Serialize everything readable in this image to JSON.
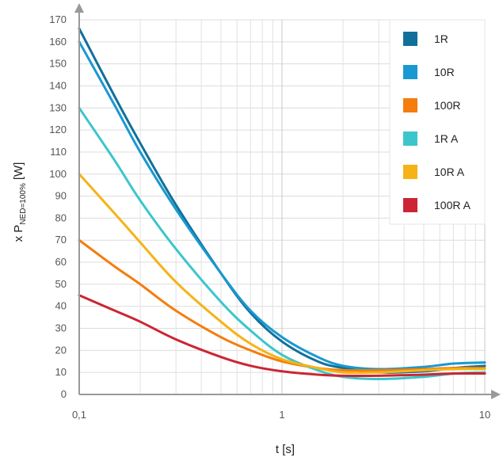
{
  "chart_data": {
    "type": "line",
    "title": "",
    "xlabel": "t [s]",
    "ylabel": {
      "prefix": "x P",
      "subscript": "NED=100%",
      "suffix": "[W]"
    },
    "x_scale": "log",
    "xlim": [
      0.1,
      10
    ],
    "ylim": [
      0,
      170
    ],
    "grid": true,
    "legend_position": "top-right",
    "x_ticks": [
      {
        "value": 0.1,
        "label": "0,1"
      },
      {
        "value": 1,
        "label": "1"
      },
      {
        "value": 10,
        "label": "10"
      }
    ],
    "y_ticks": [
      0,
      10,
      20,
      30,
      40,
      50,
      60,
      70,
      80,
      90,
      100,
      110,
      120,
      130,
      140,
      150,
      160,
      170
    ],
    "series": [
      {
        "name": "1R",
        "color": "#11709a",
        "points": [
          [
            0.1,
            166
          ],
          [
            0.15,
            135
          ],
          [
            0.2,
            114
          ],
          [
            0.3,
            86
          ],
          [
            0.5,
            55
          ],
          [
            0.7,
            37
          ],
          [
            1.0,
            24
          ],
          [
            1.5,
            15
          ],
          [
            2.0,
            12
          ],
          [
            3.0,
            10
          ],
          [
            5.0,
            10.5
          ],
          [
            7.0,
            12
          ],
          [
            10.0,
            13
          ]
        ]
      },
      {
        "name": "10R",
        "color": "#1998d1",
        "points": [
          [
            0.1,
            160
          ],
          [
            0.15,
            131
          ],
          [
            0.2,
            110
          ],
          [
            0.3,
            84
          ],
          [
            0.5,
            55
          ],
          [
            0.7,
            38
          ],
          [
            1.0,
            26
          ],
          [
            1.5,
            17
          ],
          [
            2.0,
            13
          ],
          [
            3.0,
            11.5
          ],
          [
            5.0,
            12.5
          ],
          [
            7.0,
            14
          ],
          [
            10.0,
            14.5
          ]
        ]
      },
      {
        "name": "100R",
        "color": "#f47d0e",
        "points": [
          [
            0.1,
            70
          ],
          [
            0.15,
            58
          ],
          [
            0.2,
            50
          ],
          [
            0.3,
            38
          ],
          [
            0.5,
            26
          ],
          [
            0.7,
            20
          ],
          [
            1.0,
            15
          ],
          [
            1.5,
            12
          ],
          [
            2.0,
            11
          ],
          [
            3.0,
            11
          ],
          [
            5.0,
            11.5
          ],
          [
            7.0,
            12
          ],
          [
            10.0,
            12
          ]
        ]
      },
      {
        "name": "1R A",
        "color": "#3bc6cc",
        "points": [
          [
            0.1,
            130
          ],
          [
            0.15,
            106
          ],
          [
            0.2,
            88
          ],
          [
            0.3,
            66
          ],
          [
            0.5,
            42
          ],
          [
            0.7,
            29
          ],
          [
            1.0,
            18
          ],
          [
            1.5,
            11
          ],
          [
            2.0,
            8
          ],
          [
            3.0,
            7
          ],
          [
            5.0,
            8
          ],
          [
            7.0,
            9.5
          ],
          [
            10.0,
            10
          ]
        ]
      },
      {
        "name": "10R A",
        "color": "#f5b316",
        "points": [
          [
            0.1,
            100
          ],
          [
            0.15,
            82
          ],
          [
            0.2,
            69
          ],
          [
            0.3,
            51
          ],
          [
            0.5,
            33
          ],
          [
            0.7,
            23
          ],
          [
            1.0,
            16
          ],
          [
            1.5,
            12
          ],
          [
            2.0,
            10
          ],
          [
            3.0,
            10
          ],
          [
            5.0,
            11
          ],
          [
            7.0,
            11.5
          ],
          [
            10.0,
            11.5
          ]
        ]
      },
      {
        "name": "100R A",
        "color": "#cc2534",
        "points": [
          [
            0.1,
            45
          ],
          [
            0.15,
            38
          ],
          [
            0.2,
            33
          ],
          [
            0.3,
            25
          ],
          [
            0.5,
            17
          ],
          [
            0.7,
            13
          ],
          [
            1.0,
            10.5
          ],
          [
            1.5,
            9
          ],
          [
            2.0,
            8.5
          ],
          [
            3.0,
            8.5
          ],
          [
            5.0,
            9
          ],
          [
            7.0,
            9.5
          ],
          [
            10.0,
            9.5
          ]
        ]
      }
    ]
  }
}
